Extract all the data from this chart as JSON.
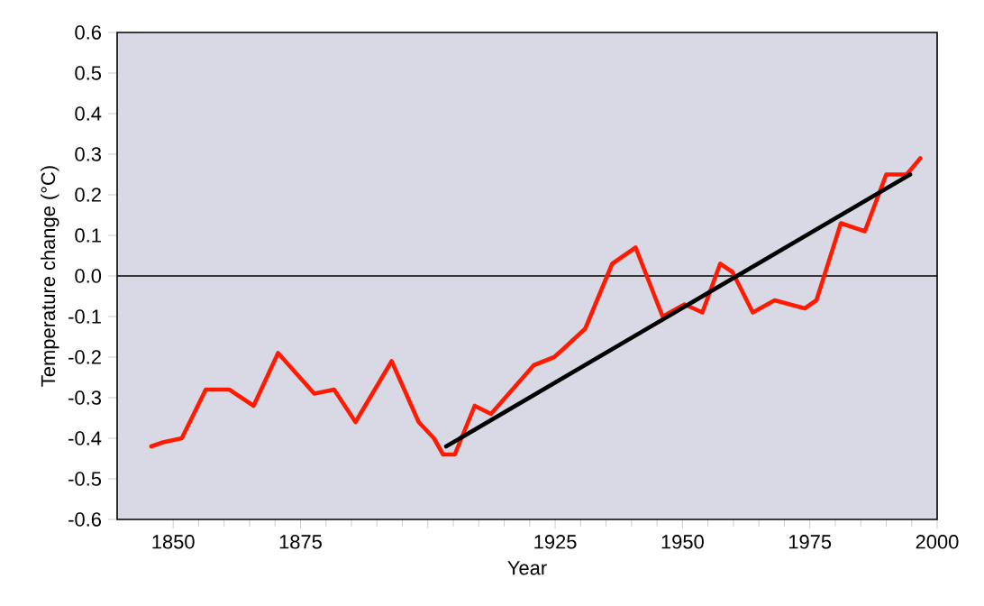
{
  "chart_data": {
    "type": "line",
    "xlabel": "Year",
    "ylabel": "Temperature change (°C)",
    "xlim": [
      1839,
      2000
    ],
    "xticks": [
      1850,
      1875,
      {
        "value": 1900,
        "label": null
      },
      1925,
      1950,
      1975,
      {
        "value": 2000,
        "label": "2000"
      }
    ],
    "ylim": [
      -0.6,
      0.6
    ],
    "yticks": [
      -0.6,
      -0.5,
      -0.4,
      -0.3,
      -0.2,
      -0.1,
      {
        "value": 0,
        "label": "0.0"
      },
      0.1,
      0.2,
      0.3,
      0.4,
      0.5,
      0.6
    ],
    "ref_lines": [
      {
        "axis": "y",
        "value": 0,
        "color": "#000000"
      }
    ],
    "series": [
      {
        "color": "#ff1a00",
        "x": [
          1845.7,
          1848,
          1851.7,
          1856.4,
          1861,
          1865.8,
          1870.6,
          1877.7,
          1881.6,
          1885.8,
          1892.9,
          1898.2,
          1901.2,
          1903,
          1905.3,
          1909.2,
          1912.4,
          1917.3,
          1920.8,
          1924.8,
          1926.6,
          1930.9,
          1936.2,
          1940.8,
          1946.1,
          1950.4,
          1953.9,
          1957.4,
          1959.8,
          1963.8,
          1968.1,
          1974,
          1976.3,
          1981.1,
          1985.8,
          1990,
          1994,
          1996.7
        ],
        "values": [
          -0.42,
          -0.41,
          -0.4,
          -0.28,
          -0.28,
          -0.32,
          -0.19,
          -0.29,
          -0.28,
          -0.36,
          -0.21,
          -0.36,
          -0.4,
          -0.44,
          -0.44,
          -0.32,
          -0.34,
          -0.27,
          -0.22,
          -0.2,
          -0.18,
          -0.13,
          0.03,
          0.07,
          -0.1,
          -0.07,
          -0.09,
          0.03,
          0.01,
          -0.09,
          -0.06,
          -0.08,
          -0.06,
          0.13,
          0.11,
          0.25,
          0.25,
          0.29
        ]
      },
      {
        "color": "#000000",
        "x": [
          1903.6,
          1994.7
        ],
        "values": [
          -0.42,
          0.25
        ]
      }
    ]
  }
}
